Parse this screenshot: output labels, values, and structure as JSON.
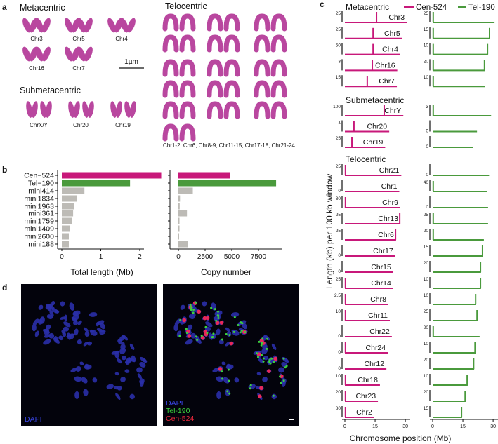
{
  "panel_labels": {
    "a": "a",
    "b": "b",
    "c": "c",
    "d": "d"
  },
  "panel_a": {
    "metacentric_title": "Metacentric",
    "metacentric": [
      "Chr3",
      "Chr5",
      "Chr4",
      "Chr16",
      "Chr7"
    ],
    "scale_bar": "1µm",
    "submetacentric_title": "Submetacentric",
    "submetacentric": [
      "ChrX/Y",
      "Chr20",
      "Chr19"
    ],
    "telocentric_title": "Telocentric",
    "telocentric_caption": "Chr1-2, Chr6, Chr8-9, Chr11-15, Chr17-18, Chr21-24"
  },
  "colors": {
    "cen": "#c8187a",
    "tel": "#4a9a3c",
    "mini": "#bdbbb6"
  },
  "chart_data": [
    {
      "type": "bar",
      "orientation": "horizontal",
      "categories": [
        "Cen−524",
        "Tel−190",
        "mini414",
        "mini1834",
        "mini1963",
        "mini361",
        "mini1759",
        "mini1409",
        "mini2600",
        "mini188"
      ],
      "values": [
        2.55,
        1.75,
        0.58,
        0.39,
        0.32,
        0.29,
        0.27,
        0.2,
        0.18,
        0.18
      ],
      "xlabel": "Total length (Mb)",
      "xticks": [
        "0",
        "1",
        "2"
      ],
      "xlim": [
        0,
        2.6
      ]
    },
    {
      "type": "bar",
      "orientation": "horizontal",
      "categories": [
        "Cen−524",
        "Tel−190",
        "mini414",
        "mini1834",
        "mini1963",
        "mini361",
        "mini1759",
        "mini1409",
        "mini2600",
        "mini188"
      ],
      "values": [
        4850,
        9150,
        1350,
        150,
        120,
        800,
        100,
        100,
        50,
        900
      ],
      "xlabel": "Copy number",
      "xticks": [
        "0",
        "2500",
        "5000",
        "7500"
      ],
      "xlim": [
        0,
        9500
      ]
    },
    {
      "type": "line",
      "title_groups": [
        "Metacentric",
        "Submetacentric",
        "Telocentric"
      ],
      "legend": [
        "Cen-524",
        "Tel-190"
      ],
      "legend_placement": "top",
      "xlabel": "Chromosome position (Mb)",
      "ylabel": "Length (kb) per 100 kb window",
      "xticks": [
        "0",
        "15",
        "30"
      ],
      "tracks": [
        {
          "group": 0,
          "name": "Chr3",
          "length": 30.7,
          "cen_max": "25",
          "cen_pos": [
            15.7
          ],
          "tel_max": "25",
          "tel_pos": [
            "start"
          ]
        },
        {
          "group": 0,
          "name": "Chr5",
          "length": 28.5,
          "cen_max": "25",
          "cen_pos": [
            14
          ],
          "tel_max": "15",
          "tel_pos": [
            "start",
            "end"
          ]
        },
        {
          "group": 0,
          "name": "Chr4",
          "length": 27.5,
          "cen_max": "50",
          "cen_pos": [
            14
          ],
          "tel_max": "10",
          "tel_pos": [
            "start",
            "end"
          ]
        },
        {
          "group": 0,
          "name": "Chr16",
          "length": 26,
          "cen_max": "3",
          "cen_pos": [
            13.6
          ],
          "tel_max": "20",
          "tel_pos": [
            "start",
            "end"
          ]
        },
        {
          "group": 0,
          "name": "Chr7",
          "length": 25.8,
          "cen_max": "15",
          "cen_pos": [
            11.1
          ],
          "tel_max": "10",
          "tel_pos": [
            "start"
          ]
        },
        {
          "group": 1,
          "name": "ChrY",
          "length": 29,
          "cen_max": "100",
          "cen_pos": [
            19.5
          ],
          "tel_max": "3",
          "tel_pos": [
            "start"
          ]
        },
        {
          "group": 1,
          "name": "Chr20",
          "length": 22,
          "cen_max": "1",
          "cen_pos": [
            4.5
          ],
          "tel_max": "0",
          "tel_pos": []
        },
        {
          "group": 1,
          "name": "Chr19",
          "length": 20,
          "cen_max": "25",
          "cen_pos": [
            3.5
          ],
          "tel_max": "0",
          "tel_pos": []
        },
        {
          "group": 2,
          "name": "Chr21",
          "length": 28,
          "cen_max": "25",
          "cen_pos": [
            "start"
          ],
          "tel_max": "0",
          "tel_pos": []
        },
        {
          "group": 2,
          "name": "Chr1",
          "length": 27,
          "cen_max": "0",
          "cen_pos": [],
          "tel_max": "40",
          "tel_pos": [
            "start"
          ]
        },
        {
          "group": 2,
          "name": "Chr9",
          "length": 27.5,
          "cen_max": "30",
          "cen_pos": [
            "start"
          ],
          "tel_max": "0",
          "tel_pos": []
        },
        {
          "group": 2,
          "name": "Chr13",
          "length": 27.5,
          "cen_max": "25",
          "cen_pos": [
            "end"
          ],
          "tel_max": "25",
          "tel_pos": [
            "start"
          ]
        },
        {
          "group": 2,
          "name": "Chr6",
          "length": 25.4,
          "cen_max": "25",
          "cen_pos": [
            "end"
          ],
          "tel_max": "20",
          "tel_pos": [
            "start"
          ]
        },
        {
          "group": 2,
          "name": "Chr17",
          "length": 25,
          "cen_max": "0",
          "cen_pos": [],
          "tel_max": "15",
          "tel_pos": [
            "end"
          ]
        },
        {
          "group": 2,
          "name": "Chr15",
          "length": 24,
          "cen_max": "0",
          "cen_pos": [],
          "tel_max": "20",
          "tel_pos": [
            "end"
          ]
        },
        {
          "group": 2,
          "name": "Chr14",
          "length": 24,
          "cen_max": "25",
          "cen_pos": [
            "start"
          ],
          "tel_max": "10",
          "tel_pos": [
            "end"
          ]
        },
        {
          "group": 2,
          "name": "Chr8",
          "length": 21.6,
          "cen_max": "2.5",
          "cen_pos": [
            "start"
          ],
          "tel_max": "10",
          "tel_pos": [
            "end"
          ]
        },
        {
          "group": 2,
          "name": "Chr11",
          "length": 22.3,
          "cen_max": "10",
          "cen_pos": [
            "start"
          ],
          "tel_max": "25",
          "tel_pos": [
            "end"
          ]
        },
        {
          "group": 2,
          "name": "Chr22",
          "length": 23.3,
          "cen_max": "0",
          "cen_pos": [],
          "tel_max": "20",
          "tel_pos": [
            "start"
          ]
        },
        {
          "group": 2,
          "name": "Chr24",
          "length": 21.3,
          "cen_max": "0",
          "cen_pos": [
            "start"
          ],
          "tel_max": "10",
          "tel_pos": [
            "end"
          ]
        },
        {
          "group": 2,
          "name": "Chr12",
          "length": 20.6,
          "cen_max": "0",
          "cen_pos": [],
          "tel_max": "20",
          "tel_pos": [
            "end"
          ]
        },
        {
          "group": 2,
          "name": "Chr18",
          "length": 17.4,
          "cen_max": "10",
          "cen_pos": [
            "start"
          ],
          "tel_max": "10",
          "tel_pos": [
            "end"
          ]
        },
        {
          "group": 2,
          "name": "Chr23",
          "length": 16.4,
          "cen_max": "20",
          "cen_pos": [
            "start"
          ],
          "tel_max": "20",
          "tel_pos": [
            "end"
          ]
        },
        {
          "group": 2,
          "name": "Chr2",
          "length": 14.6,
          "cen_max": "80",
          "cen_pos": [
            "start"
          ],
          "tel_max": "15",
          "tel_pos": [
            "end"
          ]
        }
      ]
    }
  ],
  "panel_d": {
    "left_label": "DAPI",
    "right_labels": [
      "DAPI",
      "Tel-190",
      "Cen-524"
    ],
    "label_colors": [
      "#3a46e6",
      "#3cd23c",
      "#e8283c"
    ]
  }
}
